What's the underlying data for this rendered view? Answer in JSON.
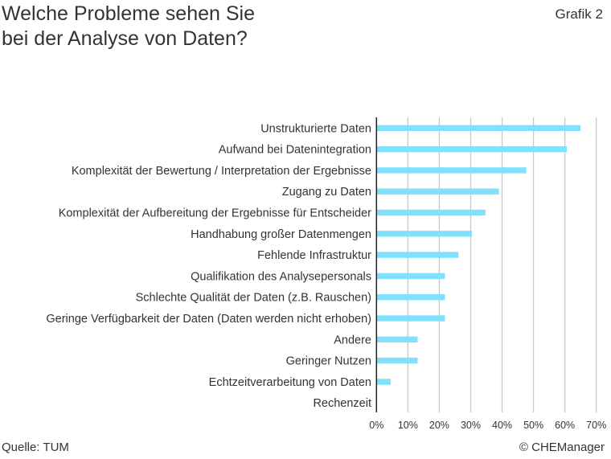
{
  "header": {
    "title_line1": "Welche Probleme sehen Sie",
    "title_line2": "bei der Analyse von Daten?",
    "figure_label": "Grafik 2"
  },
  "footer": {
    "source": "Quelle: TUM",
    "copyright": "© CHEManager"
  },
  "chart_data": {
    "type": "bar",
    "orientation": "horizontal",
    "title": "Welche Probleme sehen Sie bei der Analyse von Daten?",
    "categories": [
      "Unstrukturierte Daten",
      "Aufwand bei Datenintegration",
      "Komplexität der Bewertung / Interpretation der Ergebnisse",
      "Zugang zu Daten",
      "Komplexität der Aufbereitung der Ergebnisse für Entscheider",
      "Handhabung großer Datenmengen",
      "Fehlende Infrastruktur",
      "Qualifikation des Analysepersonals",
      "Schlechte Qualität der Daten (z.B. Rauschen)",
      "Geringe Verfügbarkeit der Daten (Daten werden nicht erhoben)",
      "Andere",
      "Geringer Nutzen",
      "Echtzeitverarbeitung von Daten",
      "Rechenzeit"
    ],
    "values": [
      65,
      60.6,
      47.7,
      39,
      34.7,
      30.4,
      26.1,
      21.8,
      21.8,
      21.8,
      13.1,
      13.1,
      4.5,
      0
    ],
    "unit": "%",
    "xlim": [
      0,
      70
    ],
    "xticks": [
      "0%",
      "10%",
      "20%",
      "30%",
      "40%",
      "50%",
      "60%",
      "70%"
    ],
    "grid": "vertical",
    "bar_color": "#7fe1fb"
  }
}
